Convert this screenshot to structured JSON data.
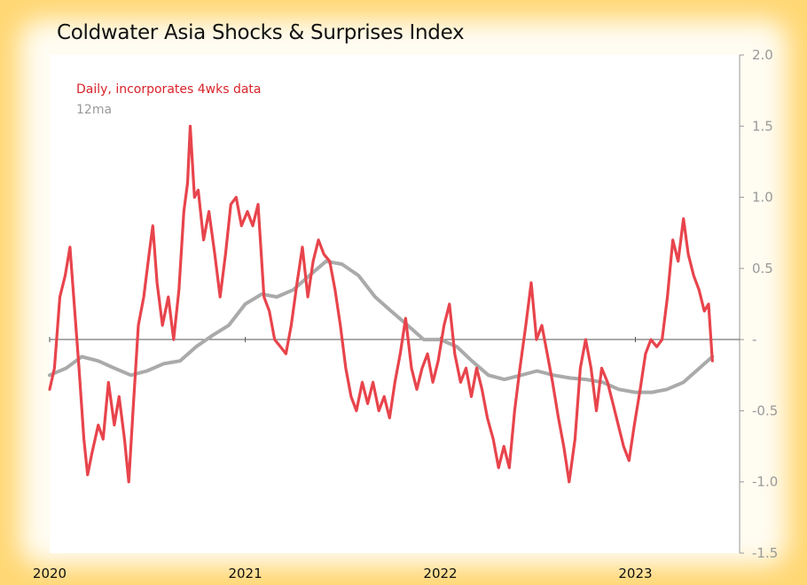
{
  "chart_data": {
    "type": "line",
    "title": "Coldwater Asia Shocks & Surprises Index",
    "xlabel": "",
    "ylabel": "",
    "ylim": [
      -1.5,
      2.0
    ],
    "xlim": [
      "2020-01-01",
      "2023-07-15"
    ],
    "yticks": [
      {
        "value": 2.0,
        "label": "2.0"
      },
      {
        "value": 1.5,
        "label": "1.5"
      },
      {
        "value": 1.0,
        "label": "1.0"
      },
      {
        "value": 0.5,
        "label": "0.5"
      },
      {
        "value": 0.0,
        "label": "-"
      },
      {
        "value": -0.5,
        "label": "-0.5"
      },
      {
        "value": -1.0,
        "label": "-1.0"
      },
      {
        "value": -1.5,
        "label": "-1.5"
      }
    ],
    "xticks": [
      {
        "date": "2020-01-01",
        "label": "2020"
      },
      {
        "date": "2021-01-01",
        "label": "2021"
      },
      {
        "date": "2022-01-01",
        "label": "2022"
      },
      {
        "date": "2023-01-01",
        "label": "2023"
      }
    ],
    "legend_position": "top-left",
    "series": [
      {
        "name": "Daily, incorporates 4wks data",
        "color": "#e8444c",
        "points": [
          [
            "2020-01-01",
            -0.35
          ],
          [
            "2020-01-10",
            -0.2
          ],
          [
            "2020-01-20",
            0.3
          ],
          [
            "2020-01-30",
            0.45
          ],
          [
            "2020-02-08",
            0.65
          ],
          [
            "2020-02-15",
            0.3
          ],
          [
            "2020-02-25",
            -0.2
          ],
          [
            "2020-03-05",
            -0.7
          ],
          [
            "2020-03-12",
            -0.95
          ],
          [
            "2020-03-20",
            -0.8
          ],
          [
            "2020-04-01",
            -0.6
          ],
          [
            "2020-04-10",
            -0.7
          ],
          [
            "2020-04-20",
            -0.3
          ],
          [
            "2020-05-01",
            -0.6
          ],
          [
            "2020-05-10",
            -0.4
          ],
          [
            "2020-05-20",
            -0.7
          ],
          [
            "2020-05-28",
            -1.0
          ],
          [
            "2020-06-05",
            -0.5
          ],
          [
            "2020-06-15",
            0.1
          ],
          [
            "2020-06-25",
            0.3
          ],
          [
            "2020-07-05",
            0.6
          ],
          [
            "2020-07-12",
            0.8
          ],
          [
            "2020-07-20",
            0.4
          ],
          [
            "2020-07-30",
            0.1
          ],
          [
            "2020-08-10",
            0.3
          ],
          [
            "2020-08-20",
            0.0
          ],
          [
            "2020-08-30",
            0.35
          ],
          [
            "2020-09-08",
            0.9
          ],
          [
            "2020-09-15",
            1.1
          ],
          [
            "2020-09-20",
            1.5
          ],
          [
            "2020-09-28",
            1.0
          ],
          [
            "2020-10-05",
            1.05
          ],
          [
            "2020-10-15",
            0.7
          ],
          [
            "2020-10-25",
            0.9
          ],
          [
            "2020-11-05",
            0.6
          ],
          [
            "2020-11-15",
            0.3
          ],
          [
            "2020-11-25",
            0.6
          ],
          [
            "2020-12-05",
            0.95
          ],
          [
            "2020-12-15",
            1.0
          ],
          [
            "2020-12-25",
            0.8
          ],
          [
            "2021-01-05",
            0.9
          ],
          [
            "2021-01-15",
            0.8
          ],
          [
            "2021-01-25",
            0.95
          ],
          [
            "2021-02-05",
            0.3
          ],
          [
            "2021-02-15",
            0.2
          ],
          [
            "2021-02-25",
            0.0
          ],
          [
            "2021-03-08",
            -0.05
          ],
          [
            "2021-03-18",
            -0.1
          ],
          [
            "2021-03-28",
            0.1
          ],
          [
            "2021-04-08",
            0.4
          ],
          [
            "2021-04-18",
            0.65
          ],
          [
            "2021-04-28",
            0.3
          ],
          [
            "2021-05-08",
            0.55
          ],
          [
            "2021-05-18",
            0.7
          ],
          [
            "2021-05-28",
            0.6
          ],
          [
            "2021-06-08",
            0.55
          ],
          [
            "2021-06-18",
            0.35
          ],
          [
            "2021-06-28",
            0.1
          ],
          [
            "2021-07-08",
            -0.2
          ],
          [
            "2021-07-18",
            -0.4
          ],
          [
            "2021-07-28",
            -0.5
          ],
          [
            "2021-08-08",
            -0.3
          ],
          [
            "2021-08-18",
            -0.45
          ],
          [
            "2021-08-28",
            -0.3
          ],
          [
            "2021-09-08",
            -0.5
          ],
          [
            "2021-09-18",
            -0.4
          ],
          [
            "2021-09-28",
            -0.55
          ],
          [
            "2021-10-08",
            -0.3
          ],
          [
            "2021-10-18",
            -0.1
          ],
          [
            "2021-10-28",
            0.15
          ],
          [
            "2021-11-08",
            -0.2
          ],
          [
            "2021-11-18",
            -0.35
          ],
          [
            "2021-11-28",
            -0.2
          ],
          [
            "2021-12-08",
            -0.1
          ],
          [
            "2021-12-18",
            -0.3
          ],
          [
            "2021-12-28",
            -0.15
          ],
          [
            "2022-01-08",
            0.1
          ],
          [
            "2022-01-18",
            0.25
          ],
          [
            "2022-01-28",
            -0.1
          ],
          [
            "2022-02-08",
            -0.3
          ],
          [
            "2022-02-18",
            -0.2
          ],
          [
            "2022-02-28",
            -0.4
          ],
          [
            "2022-03-10",
            -0.2
          ],
          [
            "2022-03-20",
            -0.35
          ],
          [
            "2022-03-30",
            -0.55
          ],
          [
            "2022-04-10",
            -0.7
          ],
          [
            "2022-04-20",
            -0.9
          ],
          [
            "2022-04-30",
            -0.75
          ],
          [
            "2022-05-10",
            -0.9
          ],
          [
            "2022-05-20",
            -0.5
          ],
          [
            "2022-05-30",
            -0.2
          ],
          [
            "2022-06-10",
            0.1
          ],
          [
            "2022-06-20",
            0.4
          ],
          [
            "2022-06-30",
            0.0
          ],
          [
            "2022-07-10",
            0.1
          ],
          [
            "2022-07-20",
            -0.1
          ],
          [
            "2022-07-30",
            -0.3
          ],
          [
            "2022-08-10",
            -0.55
          ],
          [
            "2022-08-20",
            -0.75
          ],
          [
            "2022-08-30",
            -1.0
          ],
          [
            "2022-09-10",
            -0.7
          ],
          [
            "2022-09-20",
            -0.2
          ],
          [
            "2022-09-30",
            0.0
          ],
          [
            "2022-10-10",
            -0.2
          ],
          [
            "2022-10-20",
            -0.5
          ],
          [
            "2022-10-30",
            -0.2
          ],
          [
            "2022-11-10",
            -0.3
          ],
          [
            "2022-11-20",
            -0.45
          ],
          [
            "2022-11-30",
            -0.6
          ],
          [
            "2022-12-10",
            -0.75
          ],
          [
            "2022-12-20",
            -0.85
          ],
          [
            "2022-12-30",
            -0.6
          ],
          [
            "2023-01-10",
            -0.35
          ],
          [
            "2023-01-20",
            -0.1
          ],
          [
            "2023-01-30",
            0.0
          ],
          [
            "2023-02-10",
            -0.05
          ],
          [
            "2023-02-20",
            0.0
          ],
          [
            "2023-03-02",
            0.3
          ],
          [
            "2023-03-12",
            0.7
          ],
          [
            "2023-03-22",
            0.55
          ],
          [
            "2023-04-01",
            0.85
          ],
          [
            "2023-04-10",
            0.6
          ],
          [
            "2023-04-20",
            0.45
          ],
          [
            "2023-04-30",
            0.35
          ],
          [
            "2023-05-10",
            0.2
          ],
          [
            "2023-05-18",
            0.25
          ],
          [
            "2023-05-25",
            -0.15
          ]
        ]
      },
      {
        "name": "12ma",
        "color": "#aaaaaa",
        "points": [
          [
            "2020-01-01",
            -0.25
          ],
          [
            "2020-02-01",
            -0.2
          ],
          [
            "2020-03-01",
            -0.12
          ],
          [
            "2020-04-01",
            -0.15
          ],
          [
            "2020-05-01",
            -0.2
          ],
          [
            "2020-06-01",
            -0.25
          ],
          [
            "2020-07-01",
            -0.22
          ],
          [
            "2020-08-01",
            -0.17
          ],
          [
            "2020-09-01",
            -0.15
          ],
          [
            "2020-10-01",
            -0.05
          ],
          [
            "2020-11-01",
            0.03
          ],
          [
            "2020-12-01",
            0.1
          ],
          [
            "2021-01-01",
            0.25
          ],
          [
            "2021-02-01",
            0.32
          ],
          [
            "2021-03-01",
            0.3
          ],
          [
            "2021-04-01",
            0.35
          ],
          [
            "2021-05-01",
            0.45
          ],
          [
            "2021-06-01",
            0.55
          ],
          [
            "2021-07-01",
            0.53
          ],
          [
            "2021-08-01",
            0.45
          ],
          [
            "2021-09-01",
            0.3
          ],
          [
            "2021-10-01",
            0.2
          ],
          [
            "2021-11-01",
            0.1
          ],
          [
            "2021-12-01",
            0.0
          ],
          [
            "2022-01-01",
            0.0
          ],
          [
            "2022-02-01",
            -0.05
          ],
          [
            "2022-03-01",
            -0.15
          ],
          [
            "2022-04-01",
            -0.25
          ],
          [
            "2022-05-01",
            -0.28
          ],
          [
            "2022-06-01",
            -0.25
          ],
          [
            "2022-07-01",
            -0.22
          ],
          [
            "2022-08-01",
            -0.25
          ],
          [
            "2022-09-01",
            -0.27
          ],
          [
            "2022-10-01",
            -0.28
          ],
          [
            "2022-11-01",
            -0.3
          ],
          [
            "2022-12-01",
            -0.35
          ],
          [
            "2023-01-01",
            -0.37
          ],
          [
            "2023-02-01",
            -0.37
          ],
          [
            "2023-03-01",
            -0.35
          ],
          [
            "2023-04-01",
            -0.3
          ],
          [
            "2023-05-01",
            -0.2
          ],
          [
            "2023-05-25",
            -0.12
          ]
        ]
      }
    ]
  }
}
